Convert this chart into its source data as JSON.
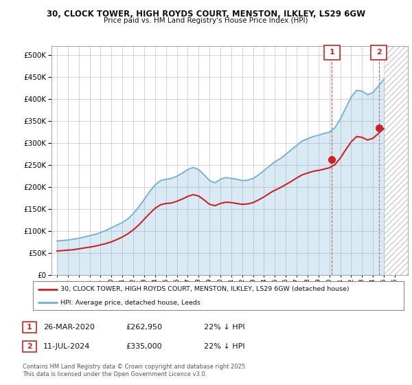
{
  "title_line1": "30, CLOCK TOWER, HIGH ROYDS COURT, MENSTON, ILKLEY, LS29 6GW",
  "title_line2": "Price paid vs. HM Land Registry's House Price Index (HPI)",
  "background_color": "#ffffff",
  "plot_bg_color": "#ffffff",
  "grid_color": "#cccccc",
  "hpi_color": "#6baed6",
  "price_color": "#cc2222",
  "hatch_color": "#ccddee",
  "ylim": [
    0,
    520000
  ],
  "yticks": [
    0,
    50000,
    100000,
    150000,
    200000,
    250000,
    300000,
    350000,
    400000,
    450000,
    500000
  ],
  "legend_label_price": "30, CLOCK TOWER, HIGH ROYDS COURT, MENSTON, ILKLEY, LS29 6GW (detached house)",
  "legend_label_hpi": "HPI: Average price, detached house, Leeds",
  "annotation1_date": "26-MAR-2020",
  "annotation1_price": "£262,950",
  "annotation1_note": "22% ↓ HPI",
  "annotation2_date": "11-JUL-2024",
  "annotation2_price": "£335,000",
  "annotation2_note": "22% ↓ HPI",
  "footer": "Contains HM Land Registry data © Crown copyright and database right 2025.\nThis data is licensed under the Open Government Licence v3.0.",
  "marker1_x": 2020.23,
  "marker1_y": 262950,
  "marker2_x": 2024.53,
  "marker2_y": 335000,
  "xlim_left": 1994.5,
  "xlim_right": 2027.2,
  "hpi_x": [
    1995,
    1995.25,
    1995.5,
    1995.75,
    1996,
    1996.25,
    1996.5,
    1996.75,
    1997,
    1997.25,
    1997.5,
    1997.75,
    1998,
    1998.25,
    1998.5,
    1998.75,
    1999,
    1999.25,
    1999.5,
    1999.75,
    2000,
    2000.25,
    2000.5,
    2000.75,
    2001,
    2001.25,
    2001.5,
    2001.75,
    2002,
    2002.25,
    2002.5,
    2002.75,
    2003,
    2003.25,
    2003.5,
    2003.75,
    2004,
    2004.25,
    2004.5,
    2004.75,
    2005,
    2005.25,
    2005.5,
    2005.75,
    2006,
    2006.25,
    2006.5,
    2006.75,
    2007,
    2007.25,
    2007.5,
    2007.75,
    2008,
    2008.25,
    2008.5,
    2008.75,
    2009,
    2009.25,
    2009.5,
    2009.75,
    2010,
    2010.25,
    2010.5,
    2010.75,
    2011,
    2011.25,
    2011.5,
    2011.75,
    2012,
    2012.25,
    2012.5,
    2012.75,
    2013,
    2013.25,
    2013.5,
    2013.75,
    2014,
    2014.25,
    2014.5,
    2014.75,
    2015,
    2015.25,
    2015.5,
    2015.75,
    2016,
    2016.25,
    2016.5,
    2016.75,
    2017,
    2017.25,
    2017.5,
    2017.75,
    2018,
    2018.25,
    2018.5,
    2018.75,
    2019,
    2019.25,
    2019.5,
    2019.75,
    2020,
    2020.25,
    2020.5,
    2020.75,
    2021,
    2021.25,
    2021.5,
    2021.75,
    2022,
    2022.25,
    2022.5,
    2022.75,
    2023,
    2023.25,
    2023.5,
    2023.75,
    2024,
    2024.25,
    2024.5,
    2024.75,
    2025
  ],
  "hpi_y": [
    78000,
    78500,
    79000,
    79500,
    80000,
    81000,
    82000,
    83000,
    84000,
    85500,
    87000,
    88500,
    90000,
    91500,
    93000,
    95000,
    97000,
    99500,
    102000,
    105000,
    108000,
    111000,
    114000,
    117000,
    120000,
    124000,
    128000,
    134000,
    140000,
    147500,
    155000,
    163500,
    172000,
    181000,
    190000,
    197500,
    205000,
    210000,
    215000,
    216500,
    218000,
    219000,
    220000,
    222500,
    225000,
    228500,
    232000,
    236000,
    240000,
    242500,
    245000,
    242500,
    240000,
    234000,
    228000,
    221500,
    215000,
    212500,
    210000,
    214000,
    218000,
    220000,
    222000,
    221000,
    220000,
    219000,
    218000,
    216500,
    215000,
    215500,
    216000,
    218000,
    220000,
    224000,
    228000,
    233000,
    238000,
    243000,
    248000,
    253000,
    258000,
    261500,
    265000,
    270000,
    275000,
    280000,
    285000,
    290000,
    295000,
    300000,
    305000,
    307500,
    310000,
    312500,
    315000,
    316500,
    318000,
    320000,
    322000,
    323500,
    325000,
    330000,
    335000,
    345000,
    355000,
    367500,
    380000,
    392500,
    405000,
    412500,
    420000,
    419000,
    418000,
    414000,
    410000,
    412500,
    415000,
    422500,
    430000,
    437500,
    445000
  ],
  "price_x": [
    1995,
    1995.25,
    1995.5,
    1995.75,
    1996,
    1996.25,
    1996.5,
    1996.75,
    1997,
    1997.25,
    1997.5,
    1997.75,
    1998,
    1998.25,
    1998.5,
    1998.75,
    1999,
    1999.25,
    1999.5,
    1999.75,
    2000,
    2000.25,
    2000.5,
    2000.75,
    2001,
    2001.25,
    2001.5,
    2001.75,
    2002,
    2002.25,
    2002.5,
    2002.75,
    2003,
    2003.25,
    2003.5,
    2003.75,
    2004,
    2004.25,
    2004.5,
    2004.75,
    2005,
    2005.25,
    2005.5,
    2005.75,
    2006,
    2006.25,
    2006.5,
    2006.75,
    2007,
    2007.25,
    2007.5,
    2007.75,
    2008,
    2008.25,
    2008.5,
    2008.75,
    2009,
    2009.25,
    2009.5,
    2009.75,
    2010,
    2010.25,
    2010.5,
    2010.75,
    2011,
    2011.25,
    2011.5,
    2011.75,
    2012,
    2012.25,
    2012.5,
    2012.75,
    2013,
    2013.25,
    2013.5,
    2013.75,
    2014,
    2014.25,
    2014.5,
    2014.75,
    2015,
    2015.25,
    2015.5,
    2015.75,
    2016,
    2016.25,
    2016.5,
    2016.75,
    2017,
    2017.25,
    2017.5,
    2017.75,
    2018,
    2018.25,
    2018.5,
    2018.75,
    2019,
    2019.25,
    2019.5,
    2019.75,
    2020,
    2020.25,
    2020.5,
    2020.75,
    2021,
    2021.25,
    2021.5,
    2021.75,
    2022,
    2022.25,
    2022.5,
    2022.75,
    2023,
    2023.25,
    2023.5,
    2023.75,
    2024,
    2024.25,
    2024.5,
    2024.75,
    2025
  ],
  "price_y": [
    55000,
    55500,
    56000,
    56500,
    57000,
    57500,
    58000,
    59000,
    60000,
    61000,
    62000,
    63000,
    64000,
    65000,
    66000,
    67500,
    69000,
    70500,
    72000,
    74000,
    76000,
    78500,
    81000,
    84000,
    87000,
    90500,
    94000,
    98500,
    103000,
    108500,
    114000,
    120500,
    127000,
    133500,
    140000,
    146000,
    152000,
    156000,
    160000,
    161500,
    163000,
    163500,
    164000,
    166000,
    168000,
    170500,
    173000,
    176000,
    179000,
    181000,
    183000,
    181500,
    180000,
    175500,
    171000,
    166000,
    161000,
    159500,
    158000,
    160500,
    163000,
    164500,
    166000,
    165500,
    165000,
    164000,
    163000,
    162000,
    161000,
    161500,
    162000,
    163500,
    165000,
    168000,
    171000,
    174500,
    178000,
    182000,
    186000,
    190000,
    193000,
    196000,
    199000,
    202500,
    206000,
    209500,
    213000,
    217000,
    221000,
    224500,
    228000,
    230000,
    232000,
    234000,
    236000,
    237000,
    238000,
    239500,
    241000,
    242500,
    244000,
    247500,
    251000,
    258500,
    266000,
    275500,
    285000,
    294000,
    303000,
    309000,
    315000,
    314000,
    313000,
    310000,
    307000,
    309000,
    311000,
    316500,
    322000,
    327500,
    333000
  ]
}
